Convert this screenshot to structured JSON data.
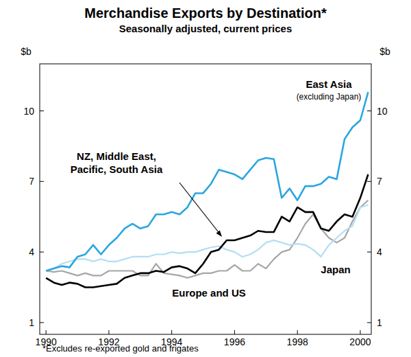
{
  "chart_data": {
    "type": "line",
    "title": "Merchandise Exports by Destination*",
    "subtitle": "Seasonally adjusted, current prices",
    "y_label": "$b",
    "footnote": "*Excludes re-exported gold and frigates",
    "x": [
      1990,
      1990.25,
      1990.5,
      1990.75,
      1991,
      1991.25,
      1991.5,
      1991.75,
      1992,
      1992.25,
      1992.5,
      1992.75,
      1993,
      1993.25,
      1993.5,
      1993.75,
      1994,
      1994.25,
      1994.5,
      1994.75,
      1995,
      1995.25,
      1995.5,
      1995.75,
      1996,
      1996.25,
      1996.5,
      1996.75,
      1997,
      1997.25,
      1997.5,
      1997.75,
      1998,
      1998.25,
      1998.5,
      1998.75,
      1999,
      1999.25,
      1999.5,
      1999.75,
      2000,
      2000.25
    ],
    "xlim": [
      1989.8,
      2000.35
    ],
    "xticks": [
      1990,
      1992,
      1994,
      1996,
      1998,
      2000
    ],
    "ylim": [
      0.5,
      12
    ],
    "yticks": [
      1,
      4,
      7,
      10
    ],
    "grid": false,
    "series": [
      {
        "name": "East Asia (excluding Japan)",
        "color": "#2aa6df",
        "values": [
          3.2,
          3.3,
          3.4,
          3.35,
          3.8,
          3.9,
          4.3,
          3.9,
          4.3,
          4.6,
          5.0,
          5.2,
          5.0,
          5.1,
          5.6,
          5.6,
          5.7,
          5.6,
          5.9,
          6.5,
          6.5,
          6.9,
          7.5,
          7.4,
          7.3,
          7.1,
          7.5,
          7.9,
          8.0,
          7.95,
          6.3,
          6.7,
          6.2,
          6.8,
          6.8,
          6.9,
          7.2,
          7.1,
          8.8,
          9.3,
          9.6,
          10.8
        ]
      },
      {
        "name": "NZ, Middle East, Pacific, South Asia",
        "color": "#000000",
        "values": [
          2.9,
          2.7,
          2.6,
          2.7,
          2.65,
          2.5,
          2.5,
          2.55,
          2.6,
          2.65,
          2.9,
          3.0,
          3.1,
          3.1,
          3.2,
          3.15,
          3.35,
          3.4,
          3.3,
          3.1,
          3.5,
          4.0,
          4.1,
          4.5,
          4.5,
          4.6,
          4.7,
          4.9,
          4.85,
          4.85,
          5.5,
          5.3,
          5.9,
          5.7,
          5.7,
          5.0,
          4.9,
          5.3,
          5.6,
          5.5,
          6.3,
          7.3
        ]
      },
      {
        "name": "Japan",
        "color": "#b3def3",
        "values": [
          3.2,
          3.3,
          3.5,
          3.6,
          3.7,
          3.7,
          3.6,
          3.7,
          3.6,
          3.6,
          3.7,
          3.8,
          3.8,
          3.8,
          3.9,
          3.9,
          4.0,
          3.95,
          4.0,
          4.0,
          4.1,
          4.2,
          4.25,
          4.1,
          4.0,
          3.8,
          3.9,
          4.1,
          4.4,
          4.5,
          4.4,
          4.3,
          4.35,
          4.3,
          4.1,
          3.8,
          4.3,
          4.6,
          4.9,
          5.1,
          5.9,
          6.0
        ]
      },
      {
        "name": "Europe and US",
        "color": "#a6a6a6",
        "values": [
          3.2,
          3.15,
          3.2,
          3.1,
          3.0,
          3.1,
          3.0,
          3.0,
          3.2,
          3.2,
          3.2,
          3.2,
          3.0,
          3.0,
          3.5,
          3.1,
          3.05,
          3.0,
          2.9,
          3.0,
          3.1,
          3.1,
          3.2,
          3.2,
          3.45,
          3.2,
          3.2,
          3.5,
          3.3,
          3.7,
          4.0,
          4.1,
          4.6,
          5.2,
          5.6,
          5.0,
          4.6,
          4.4,
          4.6,
          5.3,
          5.9,
          6.2
        ]
      }
    ]
  }
}
